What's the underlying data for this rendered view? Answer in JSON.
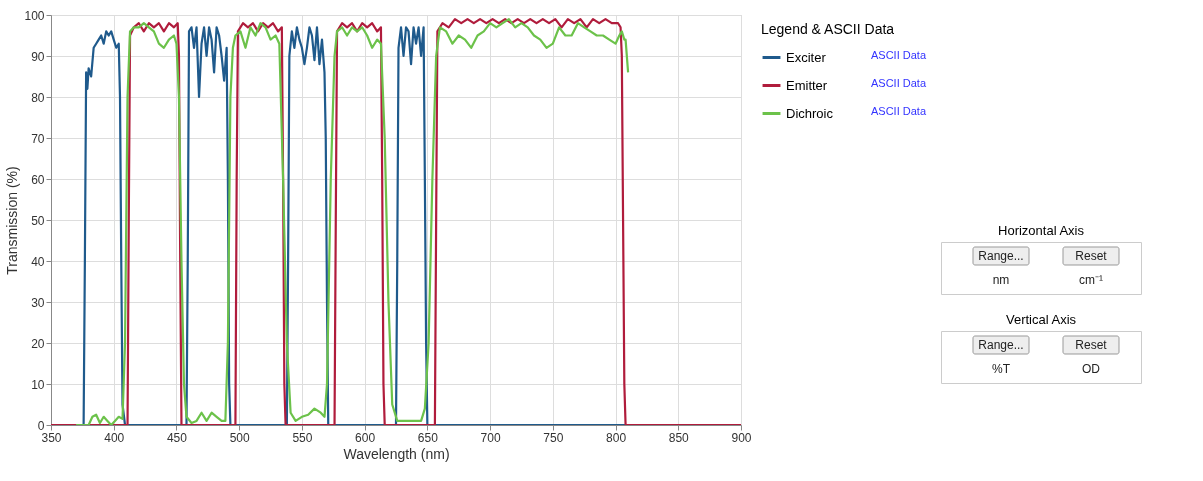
{
  "chart_data": [
    {
      "type": "line",
      "xlabel": "Wavelength (nm)",
      "ylabel": "Transmission (%)",
      "legend_title": "Legend & ASCII Data",
      "legend": "right",
      "grid": true,
      "line_style": "solid",
      "marker": "none",
      "xlim": [
        350,
        900
      ],
      "xticks": [
        350,
        400,
        450,
        500,
        550,
        600,
        650,
        700,
        750,
        800,
        850,
        900
      ],
      "ylim": [
        0,
        100
      ],
      "yticks": [
        0,
        10,
        20,
        30,
        40,
        50,
        60,
        70,
        80,
        90,
        100
      ],
      "annotations": [
        "ASCII Data",
        "ASCII Data",
        "ASCII Data"
      ],
      "series": [
        {
          "name": "Exciter",
          "color": "#1f5a8c",
          "x": [
            350,
            376,
            377,
            378,
            379,
            380,
            382,
            384,
            386,
            388,
            390,
            392,
            394,
            396,
            398,
            400,
            402,
            404,
            405,
            406,
            407,
            409,
            458,
            459,
            460,
            462,
            464,
            466,
            468,
            470,
            472,
            474,
            476,
            478,
            480,
            482,
            484,
            486,
            488,
            489,
            490,
            491,
            492,
            493,
            538,
            539,
            540,
            542,
            544,
            546,
            548,
            550,
            552,
            554,
            556,
            558,
            560,
            562,
            564,
            566,
            568,
            569,
            570,
            571,
            625,
            626,
            627,
            629,
            631,
            633,
            635,
            637,
            639,
            641,
            643,
            645,
            647,
            648,
            649,
            650,
            900
          ],
          "values": [
            0,
            0,
            40,
            86,
            82,
            87,
            85,
            92,
            93,
            94,
            95,
            93,
            96,
            95,
            96,
            94,
            92,
            93,
            80,
            40,
            5,
            0,
            0,
            40,
            96,
            97,
            92,
            97,
            80,
            93,
            97,
            90,
            97,
            94,
            86,
            97,
            95,
            90,
            84,
            88,
            92,
            60,
            10,
            0,
            0,
            40,
            90,
            96,
            92,
            97,
            94,
            92,
            88,
            92,
            97,
            95,
            89,
            97,
            88,
            94,
            86,
            70,
            30,
            0,
            0,
            40,
            92,
            97,
            90,
            97,
            96,
            88,
            97,
            93,
            97,
            90,
            97,
            60,
            20,
            0,
            0
          ]
        },
        {
          "name": "Emitter",
          "color": "#b01c3c",
          "x": [
            350,
            411,
            412,
            413,
            416,
            420,
            424,
            428,
            432,
            436,
            440,
            444,
            448,
            451,
            452,
            453,
            454,
            497,
            498,
            499,
            503,
            507,
            511,
            515,
            519,
            523,
            527,
            531,
            534,
            535,
            536,
            537,
            576,
            577,
            578,
            582,
            586,
            590,
            594,
            598,
            602,
            606,
            610,
            613,
            614,
            615,
            616,
            656,
            657,
            658,
            662,
            667,
            672,
            677,
            682,
            687,
            692,
            697,
            702,
            707,
            712,
            717,
            722,
            727,
            732,
            737,
            742,
            747,
            752,
            757,
            762,
            767,
            772,
            777,
            782,
            787,
            792,
            797,
            802,
            804,
            805,
            806,
            807,
            808,
            900
          ],
          "values": [
            0,
            0,
            50,
            95,
            97,
            98,
            96,
            98,
            97,
            98,
            96,
            98,
            97,
            98,
            90,
            40,
            0,
            0,
            60,
            96,
            98,
            97,
            98,
            96,
            98,
            97,
            98,
            96,
            97,
            60,
            10,
            0,
            0,
            50,
            96,
            98,
            97,
            98,
            96,
            98,
            97,
            98,
            96,
            97,
            60,
            10,
            0,
            0,
            50,
            96,
            98,
            97,
            99,
            98,
            99,
            98,
            99,
            98,
            99,
            98,
            99,
            98,
            99,
            98,
            99,
            98,
            99,
            98,
            99,
            97,
            99,
            98,
            99,
            97,
            99,
            98,
            99,
            98,
            98,
            97,
            90,
            50,
            10,
            0,
            0
          ]
        },
        {
          "name": "Dichroic",
          "color": "#6cc24a",
          "x": [
            370,
            380,
            383,
            386,
            389,
            392,
            395,
            398,
            401,
            404,
            407,
            409,
            411,
            413,
            416,
            420,
            424,
            428,
            432,
            436,
            440,
            444,
            448,
            450,
            452,
            454,
            456,
            458,
            462,
            466,
            470,
            474,
            478,
            482,
            486,
            489,
            491,
            493,
            495,
            497,
            501,
            505,
            509,
            513,
            517,
            521,
            525,
            529,
            532,
            535,
            538,
            541,
            545,
            550,
            555,
            560,
            565,
            568,
            570,
            573,
            576,
            578,
            582,
            586,
            590,
            594,
            598,
            602,
            606,
            610,
            613,
            616,
            619,
            622,
            626,
            632,
            640,
            645,
            648,
            651,
            654,
            657,
            660,
            665,
            670,
            675,
            680,
            685,
            690,
            695,
            700,
            705,
            710,
            715,
            720,
            725,
            730,
            735,
            740,
            745,
            750,
            755,
            760,
            765,
            770,
            775,
            780,
            785,
            790,
            795,
            800,
            803,
            805,
            807,
            808,
            810
          ],
          "values": [
            0,
            0,
            2,
            2.5,
            0.5,
            2,
            1,
            0,
            1,
            2,
            1.5,
            20,
            80,
            96,
            97,
            97,
            98,
            97,
            96,
            93,
            92,
            94,
            95,
            93,
            80,
            40,
            10,
            2,
            0.5,
            1,
            3,
            1,
            3,
            2,
            1,
            1,
            20,
            80,
            92,
            95,
            96,
            92,
            97,
            95,
            98,
            97,
            94,
            95,
            93,
            60,
            20,
            3,
            1,
            2,
            2.5,
            4,
            3,
            2,
            10,
            60,
            90,
            96,
            97,
            95,
            97,
            96,
            97,
            95,
            92,
            94,
            93,
            70,
            30,
            5,
            1,
            1,
            1,
            1,
            4,
            20,
            60,
            90,
            97,
            96,
            93,
            95,
            94,
            92,
            95,
            96,
            98,
            97,
            98,
            99,
            97,
            98,
            97,
            95,
            94,
            92,
            93,
            97,
            95,
            95,
            98,
            97,
            96,
            95,
            95,
            94,
            93,
            95,
            96,
            94,
            94,
            86
          ]
        }
      ]
    },
    {
      "type": "other",
      "title": "Horizontal Axis",
      "annotations": [
        "Range...",
        "Reset",
        "nm",
        "cm⁻¹"
      ]
    },
    {
      "type": "other",
      "title": "Vertical Axis",
      "annotations": [
        "Range...",
        "Reset",
        "%T",
        "OD"
      ]
    }
  ]
}
